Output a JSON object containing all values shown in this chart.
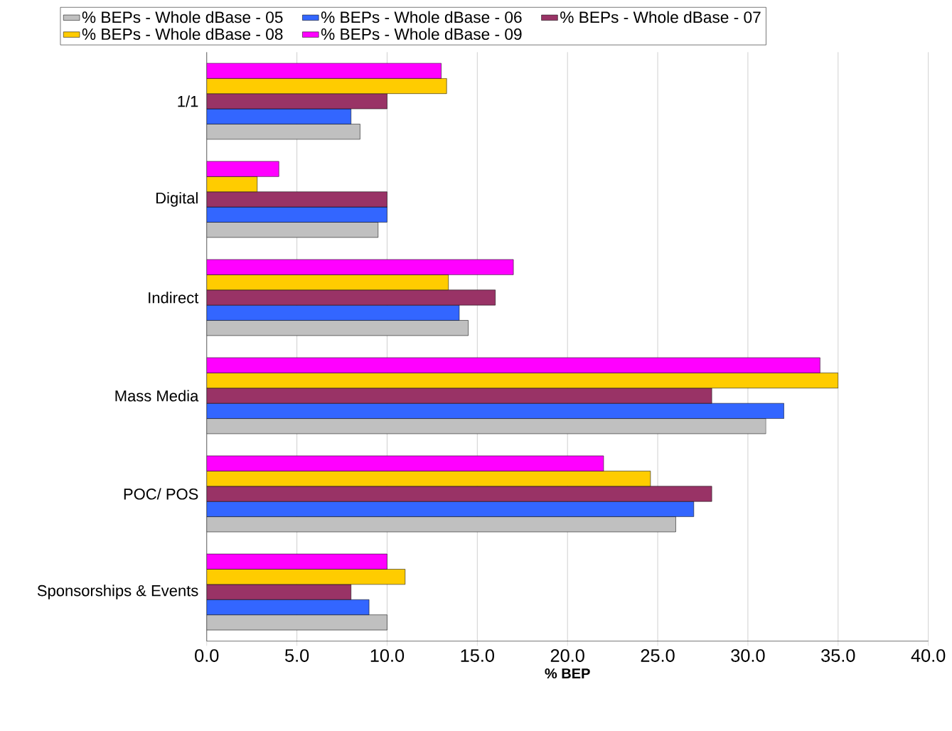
{
  "chart_data": {
    "type": "bar",
    "orientation": "horizontal",
    "xlabel": "% BEP",
    "categories": [
      "1/1",
      "Digital",
      "Indirect",
      "Mass Media",
      "POC/ POS",
      "Sponsorships & Events"
    ],
    "series": [
      {
        "name": "% BEPs - Whole dBase - 05",
        "color": "#c0c0c0",
        "values": [
          8.5,
          9.5,
          14.5,
          31.0,
          26.0,
          10.0
        ]
      },
      {
        "name": "% BEPs - Whole dBase - 06",
        "color": "#3366ff",
        "values": [
          8.0,
          10.0,
          14.0,
          32.0,
          27.0,
          9.0
        ]
      },
      {
        "name": "% BEPs - Whole dBase - 07",
        "color": "#993366",
        "values": [
          10.0,
          10.0,
          16.0,
          28.0,
          28.0,
          8.0
        ]
      },
      {
        "name": "% BEPs - Whole dBase - 08",
        "color": "#ffcc00",
        "values": [
          13.3,
          2.8,
          13.4,
          35.0,
          24.6,
          11.0
        ]
      },
      {
        "name": "% BEPs - Whole dBase - 09",
        "color": "#ff00ff",
        "values": [
          13.0,
          4.0,
          17.0,
          34.0,
          22.0,
          10.0
        ]
      }
    ],
    "xlim": [
      0,
      40
    ],
    "xticks": [
      {
        "value": 0,
        "label": "0.0"
      },
      {
        "value": 5,
        "label": "5.0"
      },
      {
        "value": 10,
        "label": "10.0"
      },
      {
        "value": 15,
        "label": "15.0"
      },
      {
        "value": 20,
        "label": "20.0"
      },
      {
        "value": 25,
        "label": "25.0"
      },
      {
        "value": 30,
        "label": "30.0"
      },
      {
        "value": 35,
        "label": "35.0"
      },
      {
        "value": 40,
        "label": "40.0"
      }
    ],
    "grid": "x",
    "legend": "top"
  }
}
